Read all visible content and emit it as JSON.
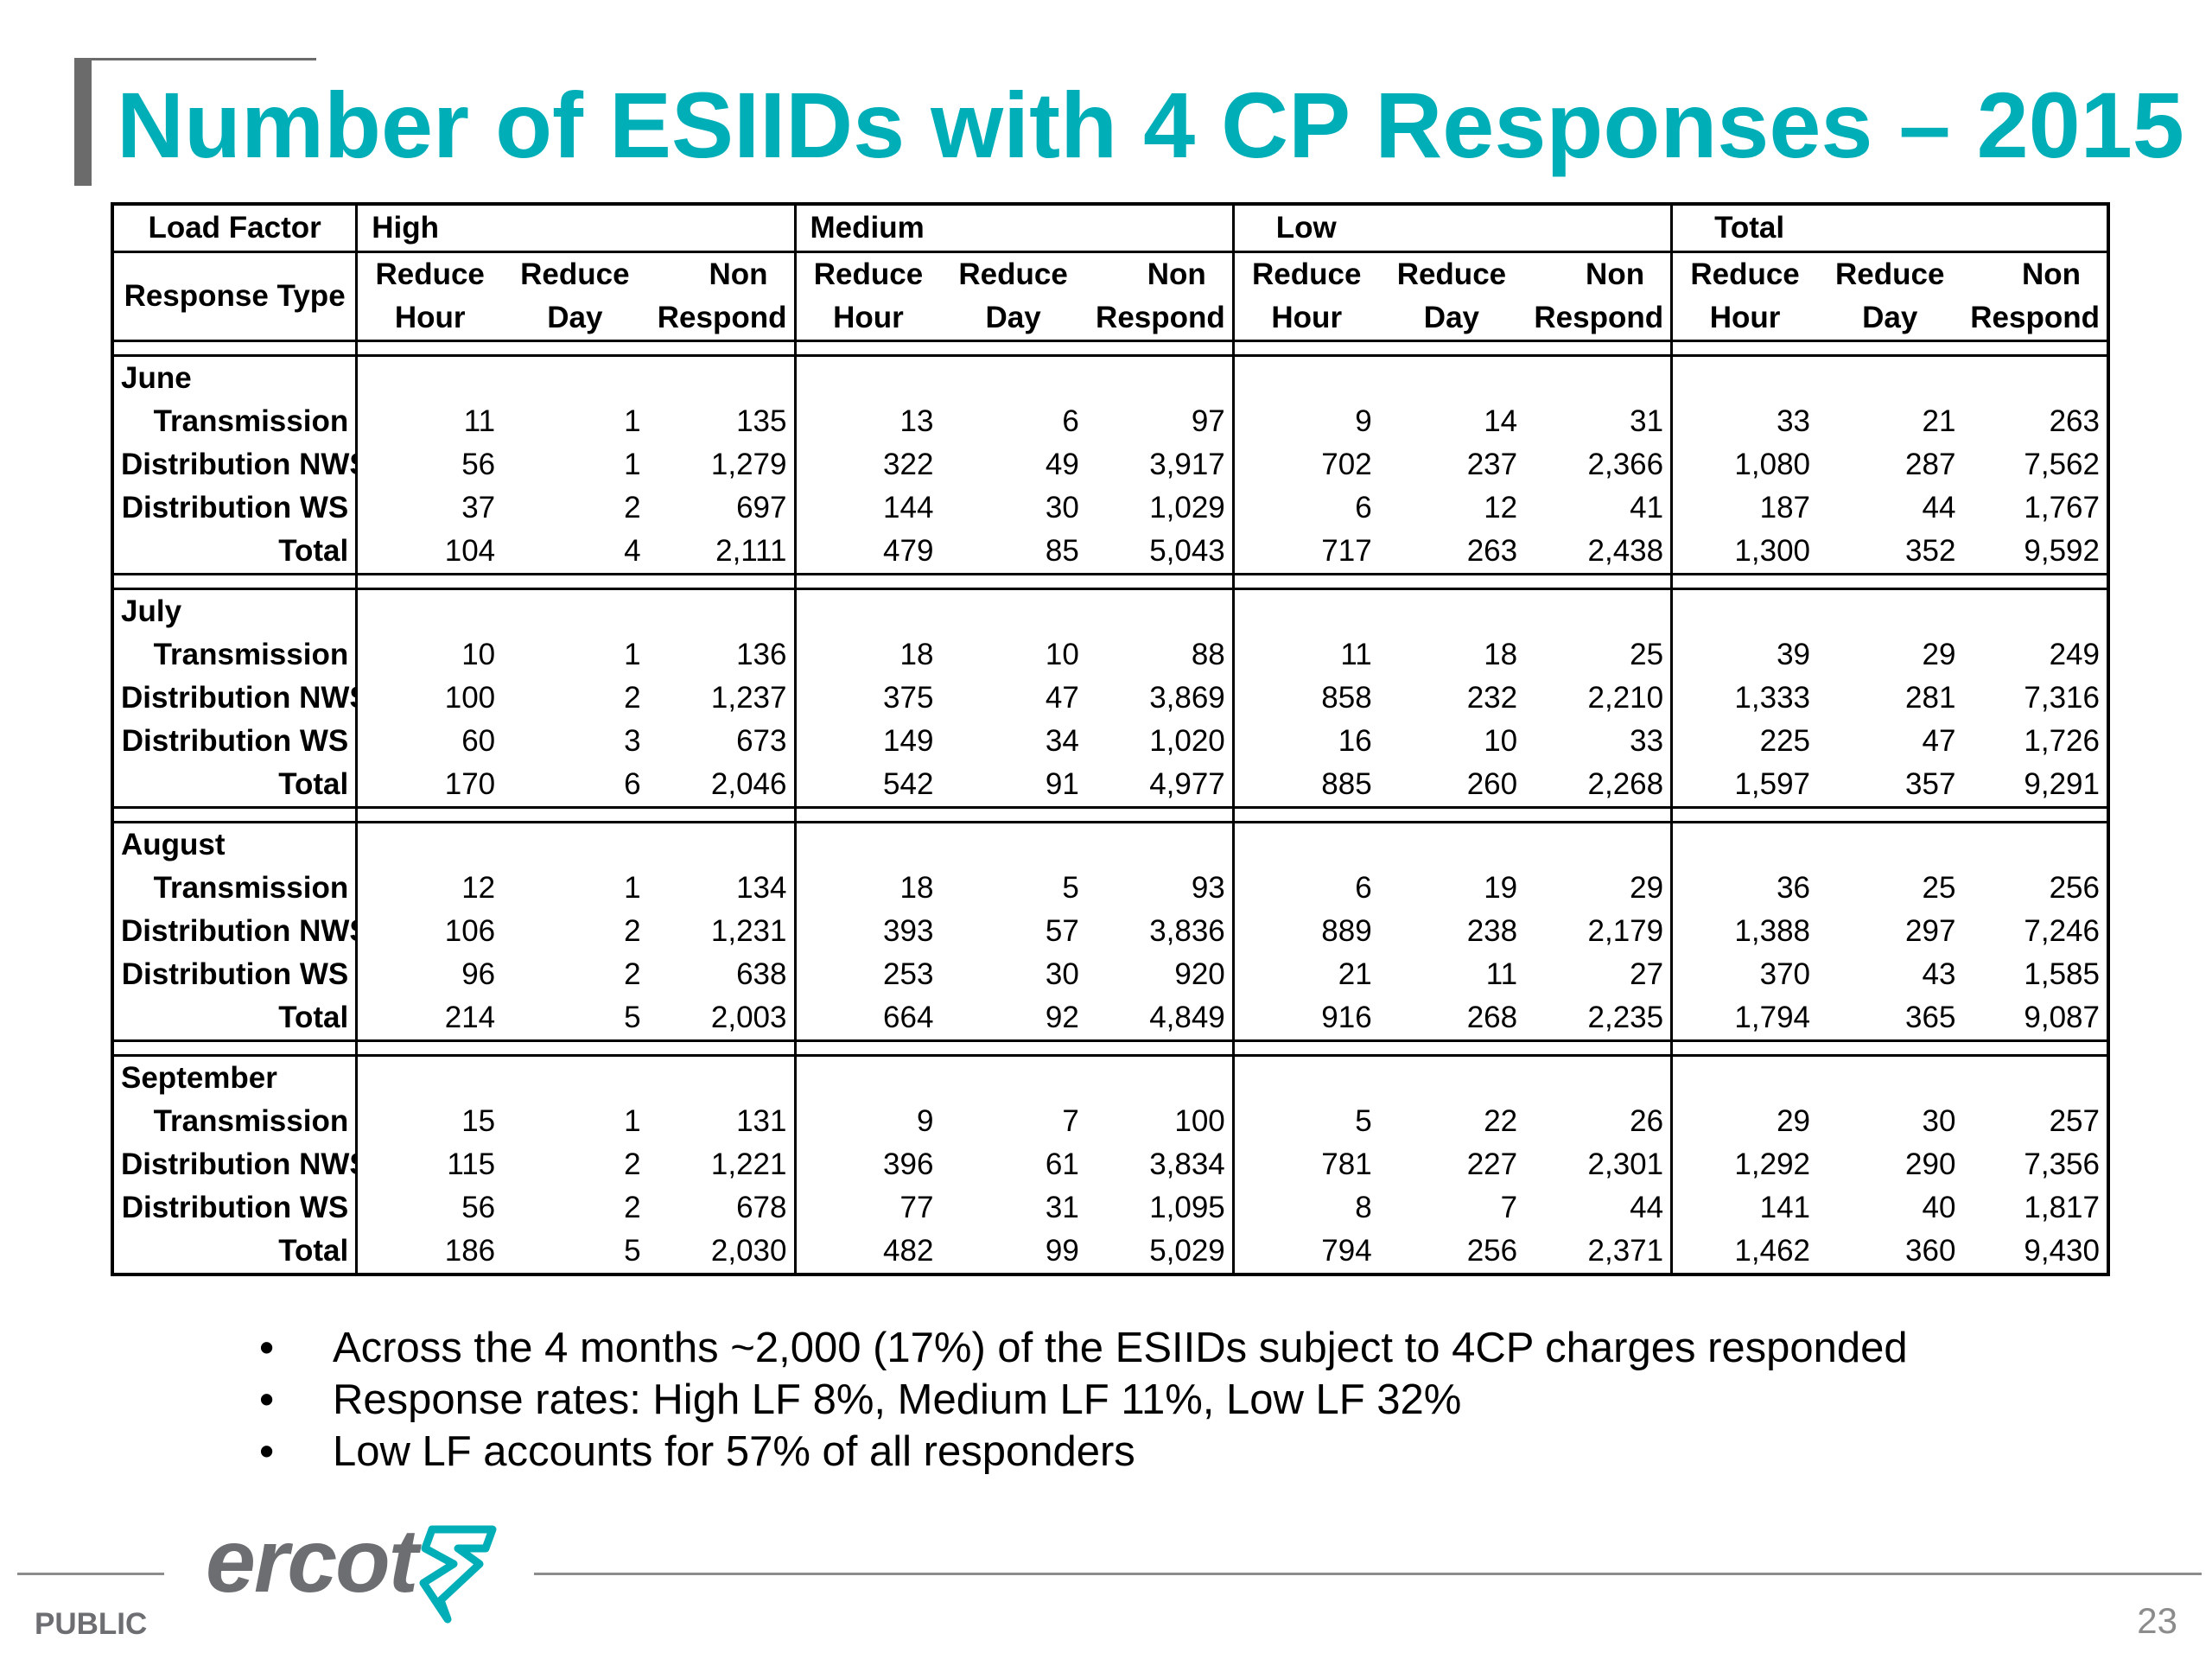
{
  "title": "Number of ESIIDs with 4 CP Responses – 2015",
  "table": {
    "load_factor_label": "Load Factor",
    "response_type_label": "Response Type",
    "groups": [
      "High",
      "Medium",
      "Low",
      "Total"
    ],
    "col_line1": [
      "Reduce",
      "Reduce",
      "Non"
    ],
    "col_line2": [
      "Hour",
      "Day",
      "Respond"
    ],
    "months": [
      {
        "name": "June",
        "rows": [
          {
            "label": "Transmission",
            "values": [
              "11",
              "1",
              "135",
              "13",
              "6",
              "97",
              "9",
              "14",
              "31",
              "33",
              "21",
              "263"
            ]
          },
          {
            "label": "Distribution NWS",
            "values": [
              "56",
              "1",
              "1,279",
              "322",
              "49",
              "3,917",
              "702",
              "237",
              "2,366",
              "1,080",
              "287",
              "7,562"
            ]
          },
          {
            "label": "Distribution WS",
            "values": [
              "37",
              "2",
              "697",
              "144",
              "30",
              "1,029",
              "6",
              "12",
              "41",
              "187",
              "44",
              "1,767"
            ]
          },
          {
            "label": "Total",
            "values": [
              "104",
              "4",
              "2,111",
              "479",
              "85",
              "5,043",
              "717",
              "263",
              "2,438",
              "1,300",
              "352",
              "9,592"
            ]
          }
        ]
      },
      {
        "name": "July",
        "rows": [
          {
            "label": "Transmission",
            "values": [
              "10",
              "1",
              "136",
              "18",
              "10",
              "88",
              "11",
              "18",
              "25",
              "39",
              "29",
              "249"
            ]
          },
          {
            "label": "Distribution NWS",
            "values": [
              "100",
              "2",
              "1,237",
              "375",
              "47",
              "3,869",
              "858",
              "232",
              "2,210",
              "1,333",
              "281",
              "7,316"
            ]
          },
          {
            "label": "Distribution WS",
            "values": [
              "60",
              "3",
              "673",
              "149",
              "34",
              "1,020",
              "16",
              "10",
              "33",
              "225",
              "47",
              "1,726"
            ]
          },
          {
            "label": "Total",
            "values": [
              "170",
              "6",
              "2,046",
              "542",
              "91",
              "4,977",
              "885",
              "260",
              "2,268",
              "1,597",
              "357",
              "9,291"
            ]
          }
        ]
      },
      {
        "name": "August",
        "rows": [
          {
            "label": "Transmission",
            "values": [
              "12",
              "1",
              "134",
              "18",
              "5",
              "93",
              "6",
              "19",
              "29",
              "36",
              "25",
              "256"
            ]
          },
          {
            "label": "Distribution NWS",
            "values": [
              "106",
              "2",
              "1,231",
              "393",
              "57",
              "3,836",
              "889",
              "238",
              "2,179",
              "1,388",
              "297",
              "7,246"
            ]
          },
          {
            "label": "Distribution WS",
            "values": [
              "96",
              "2",
              "638",
              "253",
              "30",
              "920",
              "21",
              "11",
              "27",
              "370",
              "43",
              "1,585"
            ]
          },
          {
            "label": "Total",
            "values": [
              "214",
              "5",
              "2,003",
              "664",
              "92",
              "4,849",
              "916",
              "268",
              "2,235",
              "1,794",
              "365",
              "9,087"
            ]
          }
        ]
      },
      {
        "name": "September",
        "rows": [
          {
            "label": "Transmission",
            "values": [
              "15",
              "1",
              "131",
              "9",
              "7",
              "100",
              "5",
              "22",
              "26",
              "29",
              "30",
              "257"
            ]
          },
          {
            "label": "Distribution NWS",
            "values": [
              "115",
              "2",
              "1,221",
              "396",
              "61",
              "3,834",
              "781",
              "227",
              "2,301",
              "1,292",
              "290",
              "7,356"
            ]
          },
          {
            "label": "Distribution WS",
            "values": [
              "56",
              "2",
              "678",
              "77",
              "31",
              "1,095",
              "8",
              "7",
              "44",
              "141",
              "40",
              "1,817"
            ]
          },
          {
            "label": "Total",
            "values": [
              "186",
              "5",
              "2,030",
              "482",
              "99",
              "5,029",
              "794",
              "256",
              "2,371",
              "1,462",
              "360",
              "9,430"
            ]
          }
        ]
      }
    ]
  },
  "bullets": [
    "Across the 4 months ~2,000 (17%) of the ESIIDs subject to 4CP charges responded",
    "Response rates: High LF 8%, Medium LF 11%, Low LF 32%",
    "Low LF accounts for 57% of all responders"
  ],
  "bullet_glyph": "•",
  "footer": {
    "logo_text": "ercot",
    "logo_mark_icon": "ercot-lightning-logo-icon",
    "classification": "PUBLIC",
    "page_number": "23"
  },
  "colors": {
    "title": "#00aeb7",
    "accent_bar": "#6b6b6b",
    "footer_gray": "#6d6e71",
    "logo_mark": "#00aeb7"
  }
}
